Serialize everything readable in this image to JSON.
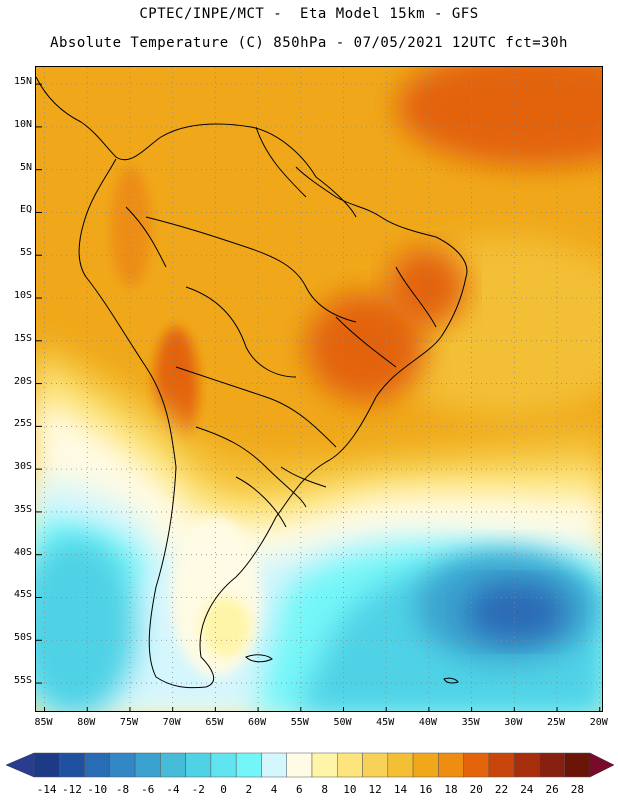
{
  "header": {
    "line1": "CPTEC/INPE/MCT -  Eta Model 15km - GFS",
    "line2": "Absolute Temperature (C) 850hPa - 07/05/2021 12UTC fct=30h"
  },
  "map": {
    "lat_labels": [
      "15N",
      "10N",
      "5N",
      "EQ",
      "5S",
      "10S",
      "15S",
      "20S",
      "25S",
      "30S",
      "35S",
      "40S",
      "45S",
      "50S",
      "55S"
    ],
    "lon_labels": [
      "85W",
      "80W",
      "75W",
      "70W",
      "65W",
      "60W",
      "55W",
      "50W",
      "45W",
      "40W",
      "35W",
      "30W",
      "25W",
      "20W"
    ],
    "extent": {
      "lon_min": -86,
      "lon_max": -19.5,
      "lat_min": -58.5,
      "lat_max": 17
    },
    "gridlines": true,
    "grid_style": "dotted gray",
    "field": "temperature 850hPa",
    "region_levels": [
      {
        "region": "northern ocean and Amazon",
        "temp_c": 17
      },
      {
        "region": "northeast Atlantic",
        "temp_c": 20
      },
      {
        "region": "central Brazil",
        "temp_c": 21
      },
      {
        "region": "Andes eastern slope",
        "temp_c": 20
      },
      {
        "region": "southern Brazil coast",
        "temp_c": 12
      },
      {
        "region": "Argentina",
        "temp_c": 5
      },
      {
        "region": "south Pacific",
        "temp_c": 2
      },
      {
        "region": "south Atlantic core",
        "temp_c": -6
      }
    ]
  },
  "colorbar": {
    "ticks": [
      "-14",
      "-12",
      "-10",
      "-8",
      "-6",
      "-4",
      "-2",
      "0",
      "2",
      "4",
      "6",
      "8",
      "10",
      "12",
      "14",
      "16",
      "18",
      "20",
      "22",
      "24",
      "26",
      "28"
    ],
    "colors": [
      "#1c3a86",
      "#2051a0",
      "#2a6bb5",
      "#3487c5",
      "#3ba2cf",
      "#47bcd9",
      "#4fd2e6",
      "#5fe4f0",
      "#74f6f8",
      "#d4f6fd",
      "#fffbe4",
      "#fff5a8",
      "#fde47c",
      "#f8d258",
      "#f3bf35",
      "#f0a81a",
      "#ed8d12",
      "#e3640a",
      "#c8460b",
      "#a72e0c",
      "#872010",
      "#6a1508"
    ],
    "left_arrow_color": "#2a3c90",
    "right_arrow_color": "#780a2a"
  }
}
